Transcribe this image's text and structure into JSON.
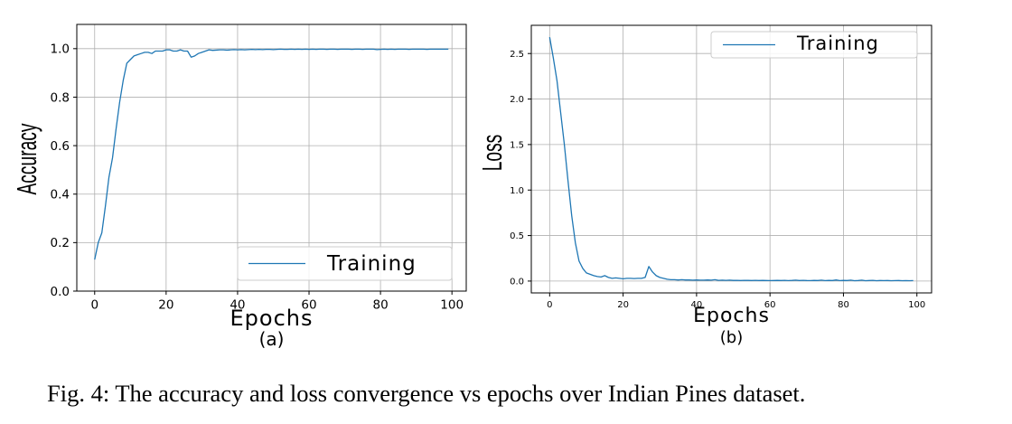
{
  "caption": "Fig. 4: The accuracy and loss convergence vs epochs over Indian Pines dataset.",
  "chart_data": [
    {
      "type": "line",
      "panel_label": "(a)",
      "xlabel": "Epochs",
      "ylabel": "Accuracy",
      "xlim": [
        -5,
        104
      ],
      "ylim": [
        0.0,
        1.1
      ],
      "xticks": [
        0,
        20,
        40,
        60,
        80,
        100
      ],
      "yticks": [
        0.0,
        0.2,
        0.4,
        0.6,
        0.8,
        1.0
      ],
      "ytick_labels": [
        "0.0",
        "0.2",
        "0.4",
        "0.6",
        "0.8",
        "1.0"
      ],
      "grid": true,
      "legend_position": "lower-right",
      "line_color": "#1f77b4",
      "series": [
        {
          "name": "Training",
          "x": [
            0,
            1,
            2,
            3,
            4,
            5,
            6,
            7,
            8,
            9,
            10,
            11,
            12,
            13,
            14,
            15,
            16,
            17,
            18,
            19,
            20,
            21,
            22,
            23,
            24,
            25,
            26,
            27,
            28,
            29,
            30,
            31,
            32,
            33,
            34,
            35,
            36,
            37,
            38,
            39,
            40,
            41,
            42,
            43,
            44,
            45,
            46,
            47,
            48,
            49,
            50,
            51,
            52,
            53,
            54,
            55,
            56,
            57,
            58,
            59,
            60,
            61,
            62,
            63,
            64,
            65,
            66,
            67,
            68,
            69,
            70,
            71,
            72,
            73,
            74,
            75,
            76,
            77,
            78,
            79,
            80,
            81,
            82,
            83,
            84,
            85,
            86,
            87,
            88,
            89,
            90,
            91,
            92,
            93,
            94,
            95,
            96,
            97,
            98,
            99
          ],
          "y": [
            0.13,
            0.2,
            0.24,
            0.35,
            0.47,
            0.55,
            0.67,
            0.78,
            0.87,
            0.94,
            0.955,
            0.97,
            0.975,
            0.98,
            0.985,
            0.985,
            0.98,
            0.99,
            0.99,
            0.99,
            0.995,
            0.995,
            0.99,
            0.99,
            0.995,
            0.99,
            0.99,
            0.965,
            0.97,
            0.98,
            0.985,
            0.99,
            0.995,
            0.993,
            0.994,
            0.995,
            0.995,
            0.994,
            0.995,
            0.996,
            0.995,
            0.996,
            0.995,
            0.996,
            0.997,
            0.996,
            0.997,
            0.996,
            0.997,
            0.997,
            0.996,
            0.997,
            0.998,
            0.997,
            0.997,
            0.998,
            0.997,
            0.998,
            0.997,
            0.998,
            0.997,
            0.998,
            0.997,
            0.998,
            0.998,
            0.997,
            0.998,
            0.998,
            0.997,
            0.998,
            0.998,
            0.998,
            0.997,
            0.998,
            0.998,
            0.997,
            0.998,
            0.998,
            0.998,
            0.996,
            0.997,
            0.998,
            0.997,
            0.998,
            0.997,
            0.998,
            0.998,
            0.998,
            0.997,
            0.998,
            0.998,
            0.998,
            0.998,
            0.997,
            0.998,
            0.998,
            0.998,
            0.998,
            0.998,
            0.998
          ]
        }
      ]
    },
    {
      "type": "line",
      "panel_label": "(b)",
      "xlabel": "Epochs",
      "ylabel": "Loss",
      "xlim": [
        -5,
        104
      ],
      "ylim": [
        -0.13,
        2.81
      ],
      "xticks": [
        0,
        20,
        40,
        60,
        80,
        100
      ],
      "yticks": [
        0.0,
        0.5,
        1.0,
        1.5,
        2.0,
        2.5
      ],
      "ytick_labels": [
        "0.0",
        "0.5",
        "1.0",
        "1.5",
        "2.0",
        "2.5"
      ],
      "grid": true,
      "legend_position": "upper-right",
      "line_color": "#1f77b4",
      "series": [
        {
          "name": "Training",
          "x": [
            0,
            1,
            2,
            3,
            4,
            5,
            6,
            7,
            8,
            9,
            10,
            11,
            12,
            13,
            14,
            15,
            16,
            17,
            18,
            19,
            20,
            21,
            22,
            23,
            24,
            25,
            26,
            27,
            28,
            29,
            30,
            31,
            32,
            33,
            34,
            35,
            36,
            37,
            38,
            39,
            40,
            41,
            42,
            43,
            44,
            45,
            46,
            47,
            48,
            49,
            50,
            51,
            52,
            53,
            54,
            55,
            56,
            57,
            58,
            59,
            60,
            61,
            62,
            63,
            64,
            65,
            66,
            67,
            68,
            69,
            70,
            71,
            72,
            73,
            74,
            75,
            76,
            77,
            78,
            79,
            80,
            81,
            82,
            83,
            84,
            85,
            86,
            87,
            88,
            89,
            90,
            91,
            92,
            93,
            94,
            95,
            96,
            97,
            98,
            99
          ],
          "y": [
            2.68,
            2.45,
            2.2,
            1.85,
            1.5,
            1.1,
            0.72,
            0.42,
            0.22,
            0.14,
            0.09,
            0.075,
            0.06,
            0.05,
            0.045,
            0.06,
            0.04,
            0.03,
            0.035,
            0.03,
            0.025,
            0.03,
            0.03,
            0.028,
            0.03,
            0.03,
            0.04,
            0.16,
            0.1,
            0.06,
            0.04,
            0.03,
            0.02,
            0.015,
            0.015,
            0.012,
            0.015,
            0.012,
            0.012,
            0.01,
            0.012,
            0.01,
            0.01,
            0.012,
            0.01,
            0.015,
            0.008,
            0.01,
            0.008,
            0.01,
            0.007,
            0.008,
            0.006,
            0.008,
            0.007,
            0.006,
            0.008,
            0.006,
            0.007,
            0.006,
            0.005,
            0.006,
            0.007,
            0.006,
            0.008,
            0.005,
            0.007,
            0.01,
            0.006,
            0.008,
            0.006,
            0.005,
            0.007,
            0.006,
            0.01,
            0.005,
            0.007,
            0.006,
            0.012,
            0.005,
            0.007,
            0.006,
            0.01,
            0.004,
            0.006,
            0.01,
            0.004,
            0.006,
            0.008,
            0.004,
            0.006,
            0.005,
            0.006,
            0.004,
            0.005,
            0.006,
            0.004,
            0.005,
            0.004,
            0.005
          ]
        }
      ]
    }
  ]
}
